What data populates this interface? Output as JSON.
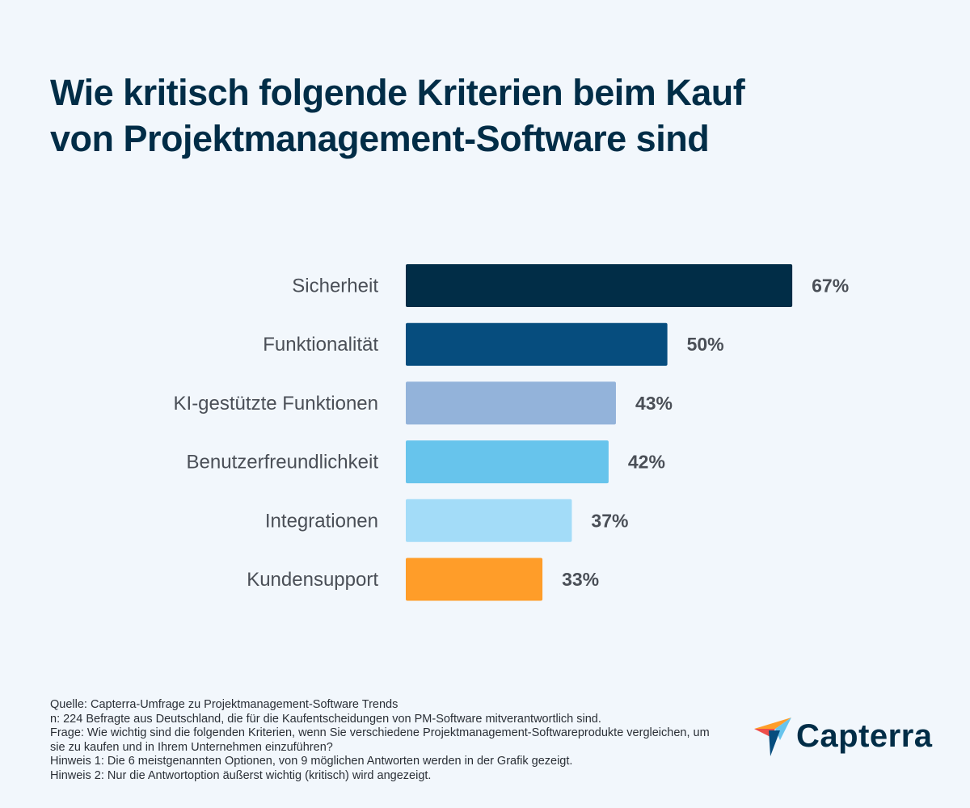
{
  "title_line1": "Wie kritisch folgende Kriterien beim Kauf",
  "title_line2": "von Projektmanagement-Software sind",
  "chart_data": {
    "type": "bar",
    "orientation": "horizontal",
    "categories": [
      "Sicherheit",
      "Funktionalität",
      "KI-gestützte Funktionen",
      "Benutzerfreundlichkeit",
      "Integrationen",
      "Kundensupport"
    ],
    "values": [
      67,
      50,
      43,
      42,
      37,
      33
    ],
    "value_labels": [
      "67%",
      "50%",
      "43%",
      "42%",
      "37%",
      "33%"
    ],
    "colors": [
      "#012d47",
      "#064d7e",
      "#93b3da",
      "#67c4ec",
      "#a3dcf8",
      "#ff9d29"
    ],
    "grid": false,
    "legend": "none"
  },
  "footer": [
    "Quelle: Capterra-Umfrage zu Projektmanagement-Software Trends",
    "n: 224 Befragte aus Deutschland, die für die Kaufentscheidungen von PM-Software mitverantwortlich sind.",
    "Frage: Wie wichtig sind die folgenden Kriterien, wenn Sie verschiedene Projektmanagement-Softwareprodukte vergleichen, um sie zu kaufen und in Ihrem Unternehmen einzuführen?",
    "Hinweis 1: Die 6 meistgenannten Optionen, von 9 möglichen Antworten werden in der Grafik gezeigt.",
    "Hinweis 2: Nur die Antwortoption äußerst wichtig (kritisch) wird angezeigt."
  ],
  "logo": {
    "text": "Capterra",
    "icon": "capterra-arrow-icon"
  }
}
